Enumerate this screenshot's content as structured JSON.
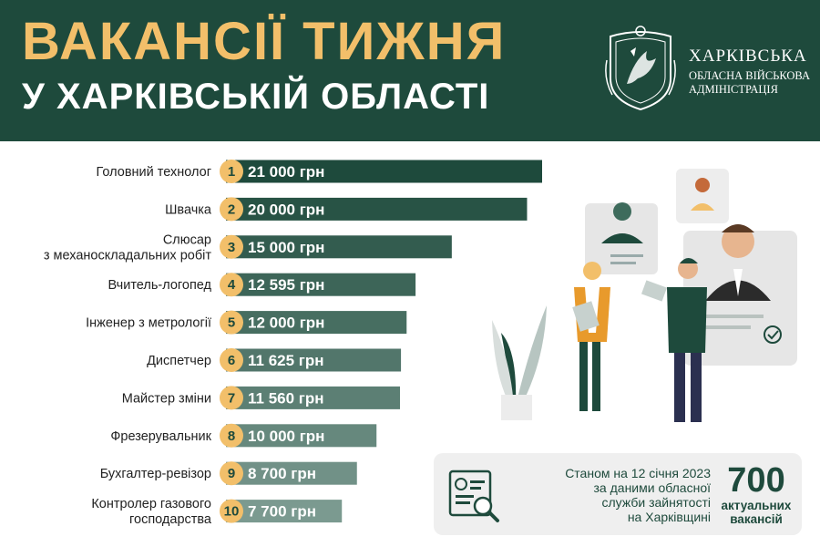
{
  "header": {
    "title_line1": "ВАКАНСІЇ ТИЖНЯ",
    "title_line2": "У ХАРКІВСЬКІЙ ОБЛАСТІ",
    "org_line1": "ХАРКІВСЬКА",
    "org_line2": "ОБЛАСНА ВІЙСЬКОВА",
    "org_line3": "АДМІНІСТРАЦІЯ",
    "emblem_icon": "kharkiv-region-coat-of-arms-icon"
  },
  "colors": {
    "header_bg": "#1e4a3c",
    "title_accent": "#f2bf6a",
    "rank_badge": "#f2bf6a",
    "bar_dark": "#1e4a3c",
    "bar_light": "#7b9a90"
  },
  "chart_data": {
    "type": "bar",
    "orientation": "horizontal",
    "categories": [
      [
        "Головний технолог"
      ],
      [
        "Швачка"
      ],
      [
        "Слюсар",
        "з механоскладальних робіт"
      ],
      [
        "Вчитель-логопед"
      ],
      [
        "Інженер з метрології"
      ],
      [
        "Диспетчер"
      ],
      [
        "Майстер зміни"
      ],
      [
        "Фрезерувальник"
      ],
      [
        "Бухгалтер-ревізор"
      ],
      [
        "Контролер газового",
        "господарства"
      ]
    ],
    "ranks": [
      "1",
      "2",
      "3",
      "4",
      "5",
      "6",
      "7",
      "8",
      "9",
      "10"
    ],
    "values": [
      21000,
      20000,
      15000,
      12595,
      12000,
      11625,
      11560,
      10000,
      8700,
      7700
    ],
    "value_labels": [
      "21 000 грн",
      "20 000 грн",
      "15 000 грн",
      "12 595 грн",
      "12 000 грн",
      "11 625 грн",
      "11 560 грн",
      "10 000 грн",
      "8 700 грн",
      "7 700 грн"
    ],
    "unit": "грн",
    "xlim": [
      0,
      21000
    ]
  },
  "info": {
    "text_lines": [
      "Станом на 12 січня 2023",
      "за даними обласної",
      "служби зайнятості",
      "на Харківщині"
    ],
    "count": "700",
    "count_label_line1": "актуальних",
    "count_label_line2": "вакансій",
    "icon": "document-search-icon"
  },
  "illustration": {
    "icon": "recruitment-people-icon"
  }
}
